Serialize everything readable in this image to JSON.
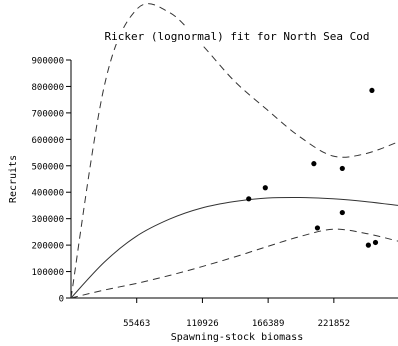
{
  "chart_data": {
    "type": "scatter",
    "title": "Ricker (lognormal) fit for North Sea Cod",
    "xlabel": "Spawning-stock biomass",
    "ylabel": "Recruits",
    "xlim": [
      0,
      276000
    ],
    "ylim": [
      0,
      900000
    ],
    "x_ticks": [
      55463,
      110926,
      166389,
      221852
    ],
    "y_ticks": [
      0,
      100000,
      200000,
      300000,
      400000,
      500000,
      600000,
      700000,
      800000,
      900000
    ],
    "grid": false,
    "observations": [
      {
        "x": 150000,
        "y": 375000
      },
      {
        "x": 164000,
        "y": 417000
      },
      {
        "x": 205000,
        "y": 508000
      },
      {
        "x": 208000,
        "y": 265000
      },
      {
        "x": 229000,
        "y": 490000
      },
      {
        "x": 229000,
        "y": 323000
      },
      {
        "x": 251000,
        "y": 200000
      },
      {
        "x": 257000,
        "y": 210000
      },
      {
        "x": 254000,
        "y": 785000
      }
    ],
    "fit": {
      "style": "solid",
      "points": [
        [
          0,
          0
        ],
        [
          28000,
          135000
        ],
        [
          55000,
          233000
        ],
        [
          83000,
          298000
        ],
        [
          110000,
          340000
        ],
        [
          138000,
          365000
        ],
        [
          166000,
          378000
        ],
        [
          193000,
          380000
        ],
        [
          221000,
          375000
        ],
        [
          248000,
          365000
        ],
        [
          276000,
          350000
        ]
      ]
    },
    "upper_band": {
      "style": "dashed",
      "points": [
        [
          0,
          0
        ],
        [
          28000,
          800000
        ],
        [
          55000,
          1090000
        ],
        [
          83000,
          1080000
        ],
        [
          110000,
          960000
        ],
        [
          138000,
          820000
        ],
        [
          166000,
          710000
        ],
        [
          193000,
          610000
        ],
        [
          221000,
          537000
        ],
        [
          248000,
          545000
        ],
        [
          276000,
          590000
        ]
      ]
    },
    "lower_band": {
      "style": "dashed",
      "points": [
        [
          0,
          0
        ],
        [
          28000,
          30000
        ],
        [
          55000,
          55000
        ],
        [
          83000,
          85000
        ],
        [
          110000,
          118000
        ],
        [
          138000,
          155000
        ],
        [
          166000,
          195000
        ],
        [
          193000,
          232000
        ],
        [
          221000,
          260000
        ],
        [
          248000,
          245000
        ],
        [
          276000,
          215000
        ]
      ]
    }
  }
}
